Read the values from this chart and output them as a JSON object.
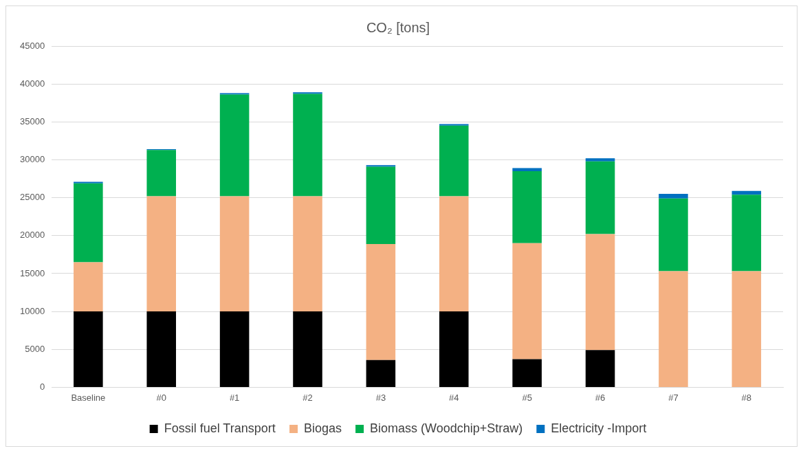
{
  "chart_data": {
    "type": "bar",
    "title": "CO₂ [tons]",
    "stacked": true,
    "categories": [
      "Baseline",
      "#0",
      "#1",
      "#2",
      "#3",
      "#4",
      "#5",
      "#6",
      "#7",
      "#8"
    ],
    "series": [
      {
        "name": "Fossil fuel Transport",
        "color": "#000000",
        "values": [
          10000,
          10000,
          10000,
          10000,
          3600,
          10000,
          3700,
          4900,
          0,
          0
        ]
      },
      {
        "name": "Biogas",
        "color": "#f4b183",
        "values": [
          6500,
          15200,
          15200,
          15200,
          15300,
          15200,
          15300,
          15300,
          15300,
          15300
        ]
      },
      {
        "name": "Biomass (Woodchip+Straw)",
        "color": "#00b050",
        "values": [
          10400,
          6100,
          13400,
          13500,
          10200,
          9300,
          9500,
          9600,
          9600,
          10100
        ]
      },
      {
        "name": "Electricity -Import",
        "color": "#0070c0",
        "values": [
          200,
          100,
          200,
          200,
          200,
          200,
          400,
          400,
          600,
          500
        ]
      }
    ],
    "ylim": [
      0,
      45000
    ],
    "yticks": [
      0,
      5000,
      10000,
      15000,
      20000,
      25000,
      30000,
      35000,
      40000,
      45000
    ],
    "grid": "y",
    "legend": "bottom"
  }
}
